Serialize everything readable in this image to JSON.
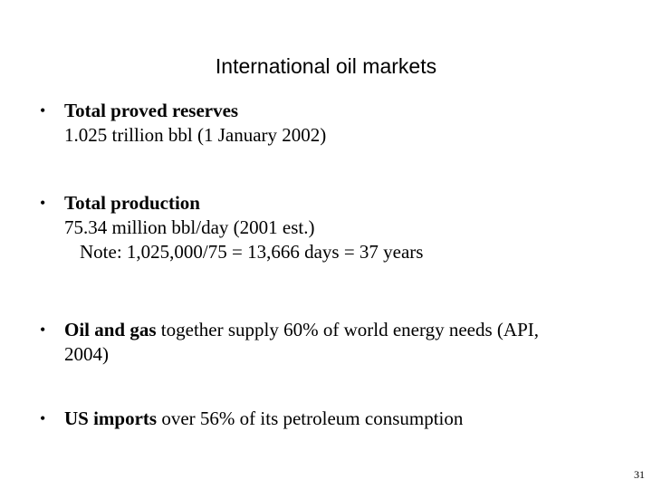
{
  "slide": {
    "title": "International oil markets",
    "bullets": [
      {
        "bold": "Total proved reserves",
        "line2": "1.025 trillion bbl (1 January 2002)"
      },
      {
        "bold": "Total production",
        "line2": "75.34 million bbl/day (2001 est.)",
        "note": "Note: 1,025,000/75 = 13,666 days = 37 years"
      },
      {
        "bold": "Oil and gas",
        "rest": " together supply 60% of world energy needs (API,",
        "line2": "2004)"
      },
      {
        "bold": "US imports",
        "rest": " over 56% of its petroleum consumption"
      }
    ],
    "bullet_glyph": "•",
    "page_number": "31"
  }
}
